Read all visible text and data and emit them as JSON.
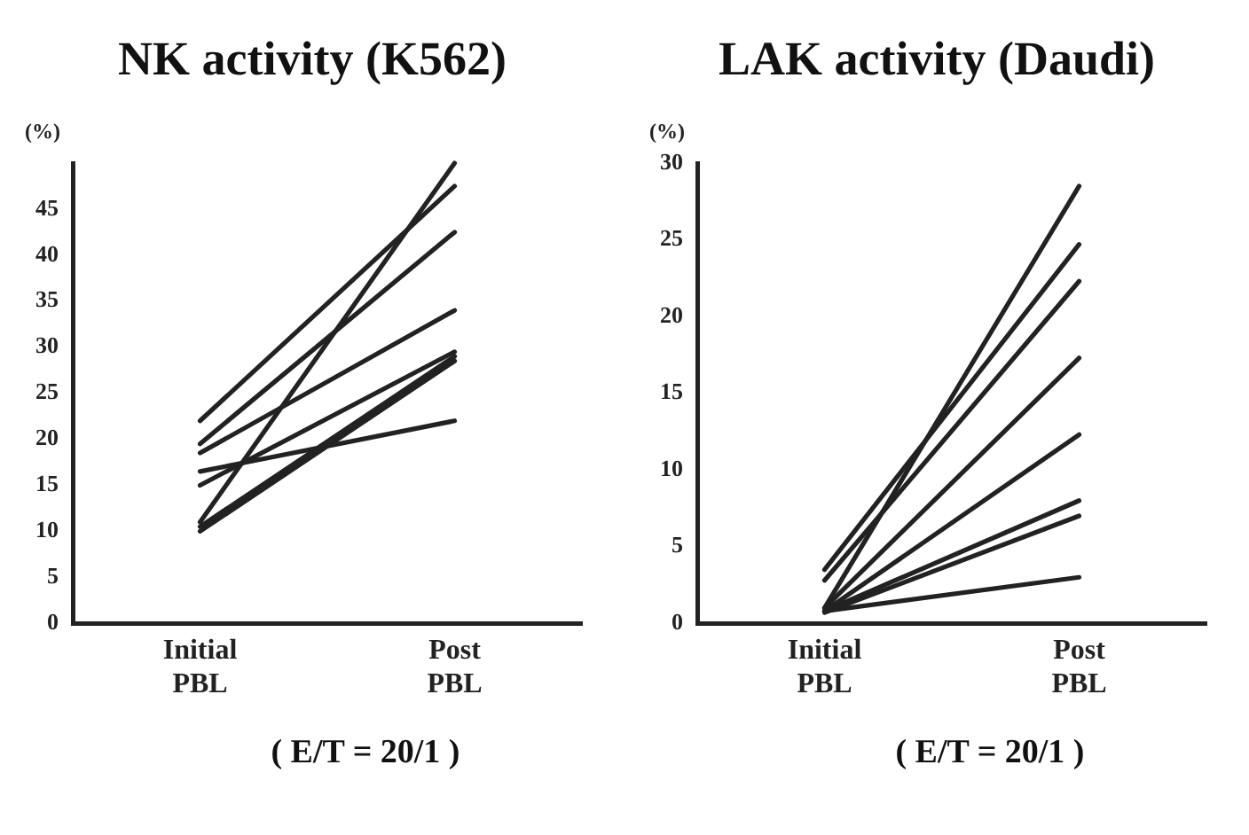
{
  "chart_data": [
    {
      "type": "line",
      "title": "NK activity (K562)",
      "ylabel": "(%)",
      "categories": [
        "Initial PBL",
        "Post PBL"
      ],
      "ylim": [
        0,
        50
      ],
      "yticks": [
        0,
        5,
        10,
        15,
        20,
        25,
        30,
        35,
        40,
        45
      ],
      "marker": "none",
      "grid": false,
      "legend": false,
      "annotations": [
        "( E/T = 20/1 )"
      ],
      "series": [
        {
          "color": "#222222",
          "values": [
            22,
            47.5
          ]
        },
        {
          "color": "#222222",
          "values": [
            19.5,
            42.5
          ]
        },
        {
          "color": "#222222",
          "values": [
            18.5,
            34
          ]
        },
        {
          "color": "#222222",
          "values": [
            16.5,
            22
          ]
        },
        {
          "color": "#222222",
          "values": [
            11,
            50
          ]
        },
        {
          "color": "#222222",
          "values": [
            15,
            29.5
          ]
        },
        {
          "color": "#222222",
          "values": [
            10.5,
            29
          ]
        },
        {
          "color": "#222222",
          "values": [
            10,
            28.5
          ]
        }
      ]
    },
    {
      "type": "line",
      "title": "LAK activity (Daudi)",
      "ylabel": "(%)",
      "categories": [
        "Initial PBL",
        "Post PBL"
      ],
      "ylim": [
        0,
        30
      ],
      "yticks": [
        0,
        5,
        10,
        15,
        20,
        25,
        30
      ],
      "marker": "none",
      "grid": false,
      "legend": false,
      "annotations": [
        "( E/T = 20/1 )"
      ],
      "series": [
        {
          "color": "#222222",
          "values": [
            1,
            28.5
          ]
        },
        {
          "color": "#222222",
          "values": [
            3.5,
            24.7
          ]
        },
        {
          "color": "#222222",
          "values": [
            2.8,
            22.3
          ]
        },
        {
          "color": "#222222",
          "values": [
            1,
            17.3
          ]
        },
        {
          "color": "#222222",
          "values": [
            0.8,
            12.3
          ]
        },
        {
          "color": "#222222",
          "values": [
            0.8,
            8
          ]
        },
        {
          "color": "#222222",
          "values": [
            0.7,
            7
          ]
        },
        {
          "color": "#222222",
          "values": [
            0.8,
            3
          ]
        }
      ]
    }
  ]
}
